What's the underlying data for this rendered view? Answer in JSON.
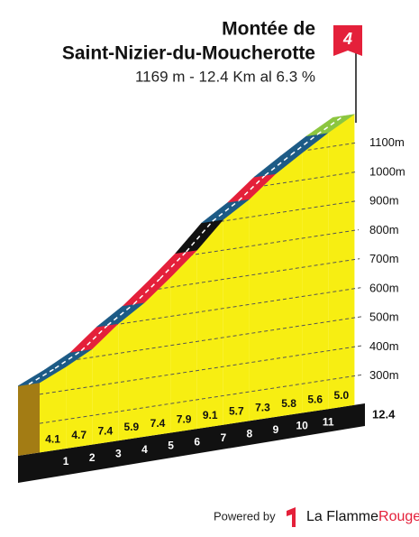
{
  "chart_data": {
    "type": "profile",
    "title_lines": [
      "Montée de",
      "Saint-Nizier-du-Moucherotte"
    ],
    "subtitle": "1169 m - 12.4 Km al 6.3 %",
    "category": "4",
    "start_elevation": 440,
    "gradients": [
      4.1,
      4.7,
      7.4,
      5.9,
      7.4,
      7.9,
      9.1,
      5.7,
      7.3,
      5.8,
      5.6,
      5.0
    ],
    "value_labels": [
      "4.1",
      "4.7",
      "7.4",
      "5.9",
      "7.4",
      "7.9",
      "9.1",
      "5.7",
      "7.3",
      "5.8",
      "5.6",
      "5.0"
    ],
    "segment_colors": [
      "#1d5b86",
      "#1d5b86",
      "#e4203a",
      "#1d5b86",
      "#e4203a",
      "#e4203a",
      "#111111",
      "#1d5b86",
      "#e4203a",
      "#1d5b86",
      "#1d5b86",
      "#8cc63f"
    ],
    "xlim": [
      0,
      12.4
    ],
    "xticks": [
      1,
      2,
      3,
      4,
      5,
      6,
      7,
      8,
      9,
      10,
      11
    ],
    "ylim": [
      200,
      1200
    ],
    "yticks": [
      {
        "value": 300,
        "label": "300m"
      },
      {
        "value": 400,
        "label": "400m"
      },
      {
        "value": 500,
        "label": "500m"
      },
      {
        "value": 600,
        "label": "600m"
      },
      {
        "value": 700,
        "label": "700m"
      },
      {
        "value": 800,
        "label": "800m"
      },
      {
        "value": 900,
        "label": "900m"
      },
      {
        "value": 1000,
        "label": "1000m"
      },
      {
        "value": 1100,
        "label": "1100m"
      }
    ],
    "face_color": "#f7ee12",
    "side_color": "#a37c14",
    "footer": {
      "powered": "Powered by",
      "brand": "La Flamme",
      "brand_accent": "Rouge"
    }
  }
}
